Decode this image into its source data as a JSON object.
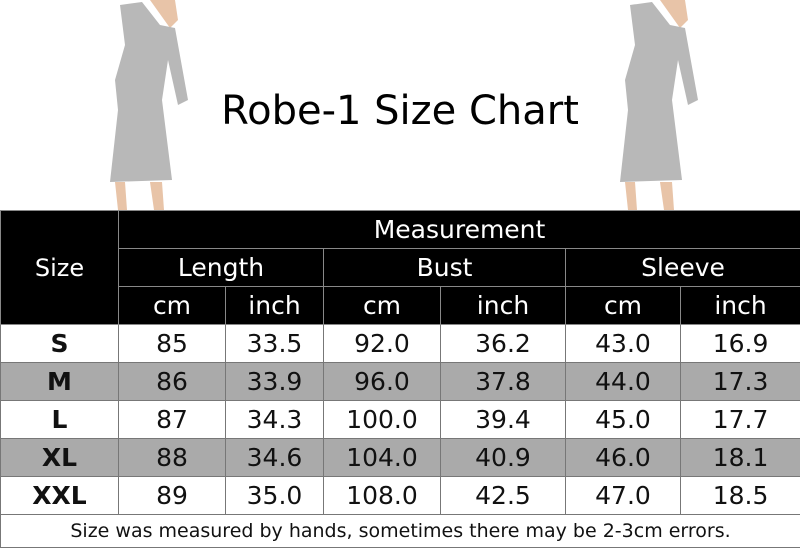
{
  "title": "Robe-1 Size  Chart",
  "table": {
    "size_header": "Size",
    "group_header": "Measurement",
    "columns": [
      {
        "label": "Length",
        "units": [
          "cm",
          "inch"
        ]
      },
      {
        "label": "Bust",
        "units": [
          "cm",
          "inch"
        ]
      },
      {
        "label": "Sleeve",
        "units": [
          "cm",
          "inch"
        ]
      }
    ],
    "rows": [
      {
        "size": "S",
        "values": [
          "85",
          "33.5",
          "92.0",
          "36.2",
          "43.0",
          "16.9"
        ]
      },
      {
        "size": "M",
        "values": [
          "86",
          "33.9",
          "96.0",
          "37.8",
          "44.0",
          "17.3"
        ]
      },
      {
        "size": "L",
        "values": [
          "87",
          "34.3",
          "100.0",
          "39.4",
          "45.0",
          "17.7"
        ]
      },
      {
        "size": "XL",
        "values": [
          "88",
          "34.6",
          "104.0",
          "40.9",
          "46.0",
          "18.1"
        ]
      },
      {
        "size": "XXL",
        "values": [
          "89",
          "35.0",
          "108.0",
          "42.5",
          "47.0",
          "18.5"
        ]
      }
    ],
    "note": "Size was measured by hands, sometimes there may be 2-3cm errors."
  },
  "colors": {
    "header_bg": "#000000",
    "alt_row_bg": "#aaaaaa",
    "robe": "#b8b8b8"
  }
}
